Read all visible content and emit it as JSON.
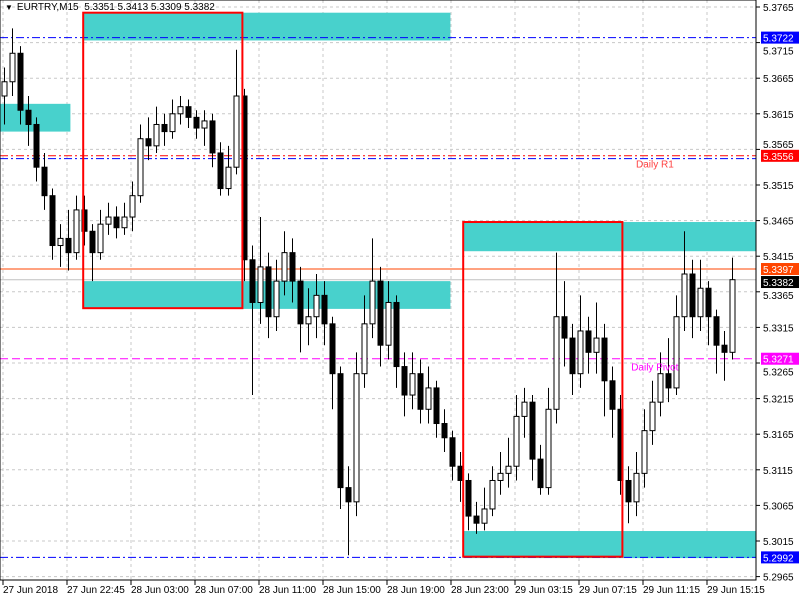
{
  "header": {
    "symbol": "EURTRY,M15",
    "ohlc": "5.3351 5.3413 5.3309 5.3382"
  },
  "chart_data": {
    "type": "candlestick",
    "symbol": "EURTRY",
    "timeframe": "M15",
    "ylim": [
      5.2955,
      5.3775
    ],
    "grid": true,
    "y_ticks": [
      "5.3765",
      "5.3715",
      "5.3665",
      "5.3615",
      "5.3565",
      "5.3515",
      "5.3465",
      "5.3415",
      "5.3365",
      "5.3315",
      "5.3265",
      "5.3215",
      "5.3165",
      "5.3115",
      "5.3065",
      "5.3015",
      "5.2965"
    ],
    "x_ticks": [
      "27 Jun 2018",
      "27 Jun 22:45",
      "28 Jun 03:00",
      "28 Jun 07:00",
      "28 Jun 11:00",
      "28 Jun 15:00",
      "28 Jun 19:00",
      "28 Jun 23:00",
      "29 Jun 03:15",
      "29 Jun 07:15",
      "29 Jun 11:15",
      "29 Jun 15:15"
    ],
    "candles_ohlc": [
      [
        5.364,
        5.368,
        5.36,
        5.366
      ],
      [
        5.366,
        5.3735,
        5.364,
        5.37
      ],
      [
        5.37,
        5.371,
        5.36,
        5.362
      ],
      [
        5.362,
        5.364,
        5.357,
        5.36
      ],
      [
        5.36,
        5.361,
        5.352,
        5.354
      ],
      [
        5.354,
        5.356,
        5.348,
        5.35
      ],
      [
        5.35,
        5.351,
        5.341,
        5.343
      ],
      [
        5.343,
        5.346,
        5.34,
        5.344
      ],
      [
        5.344,
        5.348,
        5.3395,
        5.342
      ],
      [
        5.342,
        5.35,
        5.341,
        5.348
      ],
      [
        5.348,
        5.35,
        5.343,
        5.345
      ],
      [
        5.345,
        5.346,
        5.338,
        5.342
      ],
      [
        5.342,
        5.348,
        5.341,
        5.346
      ],
      [
        5.346,
        5.349,
        5.3445,
        5.347
      ],
      [
        5.347,
        5.3485,
        5.344,
        5.3455
      ],
      [
        5.3455,
        5.349,
        5.3445,
        5.347
      ],
      [
        5.347,
        5.352,
        5.345,
        5.35
      ],
      [
        5.35,
        5.36,
        5.349,
        5.358
      ],
      [
        5.358,
        5.361,
        5.355,
        5.357
      ],
      [
        5.357,
        5.3625,
        5.356,
        5.36
      ],
      [
        5.36,
        5.3615,
        5.357,
        5.359
      ],
      [
        5.359,
        5.3635,
        5.358,
        5.3615
      ],
      [
        5.3615,
        5.364,
        5.36,
        5.3625
      ],
      [
        5.3625,
        5.3635,
        5.3595,
        5.361
      ],
      [
        5.361,
        5.362,
        5.358,
        5.3595
      ],
      [
        5.3595,
        5.362,
        5.357,
        5.3605
      ],
      [
        5.3605,
        5.3615,
        5.354,
        5.356
      ],
      [
        5.356,
        5.3575,
        5.35,
        5.351
      ],
      [
        5.351,
        5.357,
        5.35,
        5.354
      ],
      [
        5.354,
        5.3705,
        5.353,
        5.364
      ],
      [
        5.364,
        5.365,
        5.338,
        5.341
      ],
      [
        5.341,
        5.343,
        5.322,
        5.335
      ],
      [
        5.335,
        5.347,
        5.332,
        5.34
      ],
      [
        5.34,
        5.342,
        5.33,
        5.333
      ],
      [
        5.333,
        5.341,
        5.331,
        5.338
      ],
      [
        5.338,
        5.345,
        5.336,
        5.342
      ],
      [
        5.342,
        5.344,
        5.335,
        5.338
      ],
      [
        5.338,
        5.34,
        5.328,
        5.332
      ],
      [
        5.332,
        5.337,
        5.329,
        5.333
      ],
      [
        5.333,
        5.339,
        5.33,
        5.336
      ],
      [
        5.336,
        5.338,
        5.329,
        5.332
      ],
      [
        5.332,
        5.333,
        5.32,
        5.325
      ],
      [
        5.325,
        5.326,
        5.306,
        5.309
      ],
      [
        5.309,
        5.312,
        5.2995,
        5.307
      ],
      [
        5.307,
        5.328,
        5.305,
        5.325
      ],
      [
        5.325,
        5.336,
        5.323,
        5.332
      ],
      [
        5.332,
        5.344,
        5.33,
        5.338
      ],
      [
        5.338,
        5.34,
        5.326,
        5.329
      ],
      [
        5.329,
        5.338,
        5.327,
        5.335
      ],
      [
        5.335,
        5.336,
        5.323,
        5.326
      ],
      [
        5.326,
        5.328,
        5.319,
        5.322
      ],
      [
        5.322,
        5.328,
        5.32,
        5.325
      ],
      [
        5.325,
        5.327,
        5.318,
        5.32
      ],
      [
        5.32,
        5.326,
        5.318,
        5.323
      ],
      [
        5.323,
        5.324,
        5.316,
        5.318
      ],
      [
        5.318,
        5.32,
        5.314,
        5.316
      ],
      [
        5.316,
        5.317,
        5.31,
        5.312
      ],
      [
        5.312,
        5.314,
        5.307,
        5.31
      ],
      [
        5.31,
        5.311,
        5.303,
        5.305
      ],
      [
        5.305,
        5.307,
        5.3025,
        5.304
      ],
      [
        5.304,
        5.309,
        5.303,
        5.306
      ],
      [
        5.306,
        5.312,
        5.305,
        5.31
      ],
      [
        5.31,
        5.314,
        5.308,
        5.311
      ],
      [
        5.311,
        5.316,
        5.309,
        5.312
      ],
      [
        5.312,
        5.322,
        5.31,
        5.319
      ],
      [
        5.319,
        5.323,
        5.316,
        5.321
      ],
      [
        5.321,
        5.322,
        5.31,
        5.313
      ],
      [
        5.313,
        5.315,
        5.308,
        5.309
      ],
      [
        5.309,
        5.323,
        5.308,
        5.32
      ],
      [
        5.32,
        5.342,
        5.318,
        5.333
      ],
      [
        5.333,
        5.338,
        5.326,
        5.33
      ],
      [
        5.33,
        5.332,
        5.322,
        5.325
      ],
      [
        5.325,
        5.336,
        5.323,
        5.331
      ],
      [
        5.331,
        5.333,
        5.325,
        5.328
      ],
      [
        5.328,
        5.335,
        5.325,
        5.33
      ],
      [
        5.33,
        5.332,
        5.319,
        5.324
      ],
      [
        5.324,
        5.326,
        5.316,
        5.32
      ],
      [
        5.32,
        5.322,
        5.308,
        5.31
      ],
      [
        5.31,
        5.312,
        5.304,
        5.307
      ],
      [
        5.307,
        5.314,
        5.305,
        5.311
      ],
      [
        5.311,
        5.32,
        5.309,
        5.317
      ],
      [
        5.317,
        5.324,
        5.315,
        5.321
      ],
      [
        5.321,
        5.328,
        5.319,
        5.325
      ],
      [
        5.325,
        5.33,
        5.321,
        5.323
      ],
      [
        5.323,
        5.336,
        5.322,
        5.333
      ],
      [
        5.333,
        5.345,
        5.331,
        5.339
      ],
      [
        5.339,
        5.341,
        5.33,
        5.333
      ],
      [
        5.333,
        5.341,
        5.331,
        5.337
      ],
      [
        5.337,
        5.338,
        5.329,
        5.333
      ],
      [
        5.333,
        5.334,
        5.325,
        5.329
      ],
      [
        5.329,
        5.331,
        5.324,
        5.328
      ],
      [
        5.328,
        5.3413,
        5.327,
        5.3382
      ]
    ],
    "zones": [
      {
        "from_bar": 9.9,
        "to_bar": 55.8,
        "price_top": 5.3757,
        "price_bottom": 5.3718,
        "color": "#48D1CC"
      },
      {
        "from_bar": -0.5,
        "to_bar": 8.3,
        "price_top": 5.3629,
        "price_bottom": 5.359,
        "color": "#48D1CC"
      },
      {
        "from_bar": 9.9,
        "to_bar": 55.8,
        "price_top": 5.338,
        "price_bottom": 5.3341,
        "color": "#48D1CC"
      },
      {
        "from_bar": 57.4,
        "to_bar": 95,
        "price_top": 5.3463,
        "price_bottom": 5.3422,
        "color": "#48D1CC"
      },
      {
        "from_bar": 57.4,
        "to_bar": 95,
        "price_top": 5.3029,
        "price_bottom": 5.2991,
        "color": "#48D1CC"
      }
    ],
    "boxes": [
      {
        "from_bar": 9.9,
        "to_bar": 29.8,
        "price_top": 5.3757,
        "price_bottom": 5.3342,
        "color": "#FF0000"
      },
      {
        "from_bar": 57.4,
        "to_bar": 77.3,
        "price_top": 5.3463,
        "price_bottom": 5.2993,
        "color": "#FF0000"
      }
    ],
    "lines": [
      {
        "price": 5.3722,
        "label": "5.3722",
        "style": "dashdot",
        "color": "#0000FF",
        "tag_color": "#0000FF",
        "tag_text": "#FFFFFF"
      },
      {
        "price": 5.3552,
        "label": "",
        "style": "dashdot",
        "color": "#0000FF"
      },
      {
        "price": 5.3556,
        "label": "5.3556",
        "style": "dashdot",
        "color": "#FF0000",
        "tag_color": "#FF0000",
        "tag_text": "#FFFFFF",
        "name": "Daily R1"
      },
      {
        "price": 5.3397,
        "label": "5.3397",
        "style": "solid",
        "color": "#FF4500",
        "tag_color": "#FF4500",
        "tag_text": "#FFFFFF"
      },
      {
        "price": 5.3382,
        "label": "5.3382",
        "style": "solid",
        "color": "#C0C0C0",
        "tag_color": "#000000",
        "tag_text": "#FFFFFF"
      },
      {
        "price": 5.3271,
        "label": "5.3271",
        "style": "dashed",
        "color": "#FF00FF",
        "tag_color": "#FF00FF",
        "tag_text": "#FFFFFF",
        "name": "Daily Pivot"
      },
      {
        "price": 5.2992,
        "label": "5.2992",
        "style": "dashdot",
        "color": "#0000FF",
        "tag_color": "#0000FF",
        "tag_text": "#FFFFFF"
      }
    ],
    "annotations": [
      {
        "text": "Daily R1",
        "color": "#FF4040",
        "bar": 79,
        "price": 5.3545
      },
      {
        "text": "Daily Pivot",
        "color": "#FF00FF",
        "bar": 78.4,
        "price": 5.326
      }
    ]
  }
}
